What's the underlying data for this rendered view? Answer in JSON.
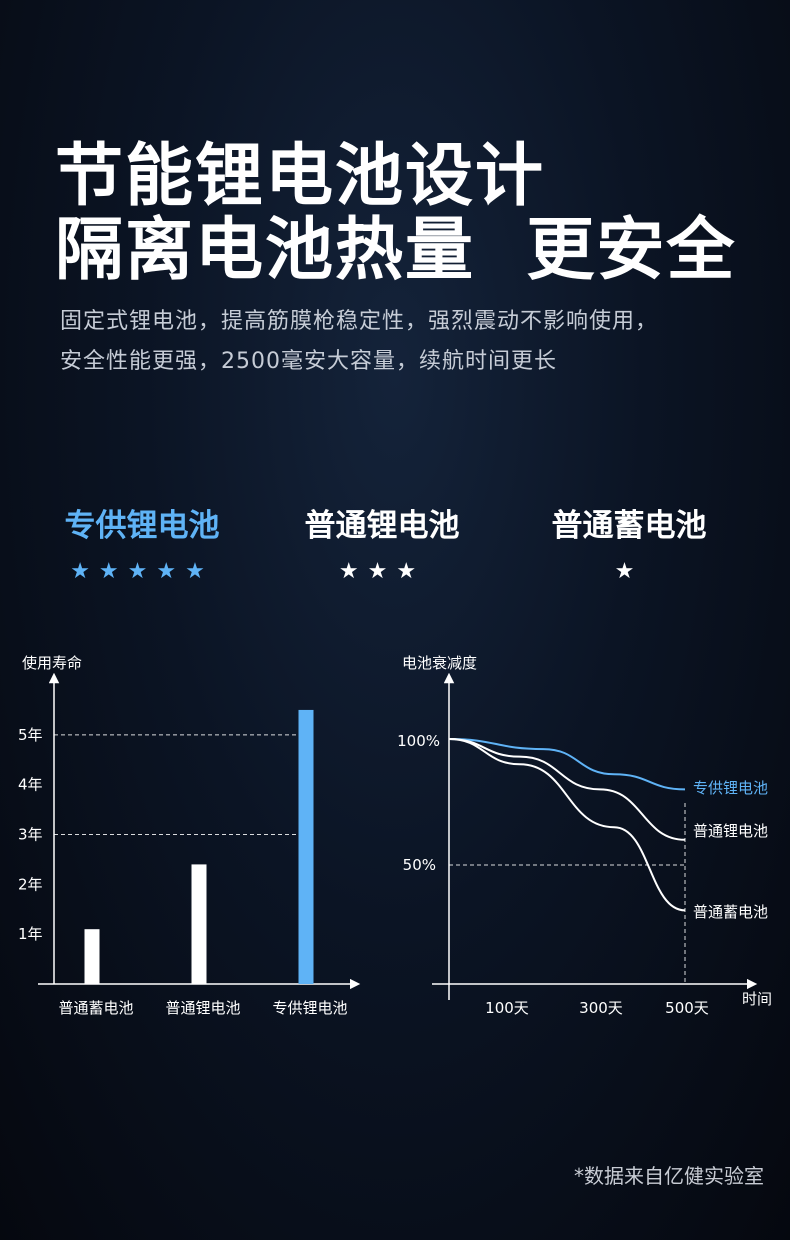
{
  "headline": {
    "line1": "节能锂电池设计",
    "line2": "隔离电池热量  更安全"
  },
  "subtext": {
    "line1": "固定式锂电池，提高筋膜枪稳定性，强烈震动不影响使用，",
    "line2": "安全性能更强，2500毫安大容量，续航时间更长"
  },
  "comparison": [
    {
      "name": "专供锂电池",
      "stars": "★★★★★",
      "rating": 5,
      "color": "#5fb3f6"
    },
    {
      "name": "普通锂电池",
      "stars": "★★★",
      "rating": 3,
      "color": "#ffffff"
    },
    {
      "name": "普通蓄电池",
      "stars": "★",
      "rating": 1,
      "color": "#ffffff"
    }
  ],
  "chart_data": [
    {
      "type": "bar",
      "ylabel": "使用寿命",
      "categories": [
        "普通蓄电池",
        "普通锂电池",
        "专供锂电池"
      ],
      "values": [
        1.1,
        2.4,
        5.5
      ],
      "yticks": [
        "1年",
        "2年",
        "3年",
        "4年",
        "5年"
      ],
      "ylim": [
        0,
        5.9
      ],
      "reference_lines": [
        3,
        5
      ],
      "colors": [
        "#ffffff",
        "#ffffff",
        "#5fb3f6"
      ]
    },
    {
      "type": "line",
      "ylabel": "电池衰减度",
      "xlabel": "时间",
      "x_ticks": [
        "100天",
        "300天",
        "500天"
      ],
      "y_ticks": [
        "100%",
        "50%"
      ],
      "series": [
        {
          "name": "专供锂电池",
          "points": [
            [
              0,
              100
            ],
            [
              200,
              96
            ],
            [
              350,
              86
            ],
            [
              500,
              80
            ]
          ],
          "color": "#5fb3f6"
        },
        {
          "name": "普通锂电池",
          "points": [
            [
              0,
              100
            ],
            [
              150,
              93
            ],
            [
              320,
              80
            ],
            [
              500,
              60
            ]
          ],
          "color": "#ffffff"
        },
        {
          "name": "普通蓄电池",
          "points": [
            [
              0,
              100
            ],
            [
              150,
              90
            ],
            [
              350,
              65
            ],
            [
              500,
              32
            ]
          ],
          "color": "#ffffff"
        }
      ]
    }
  ],
  "source_note": "*数据来自亿健实验室"
}
